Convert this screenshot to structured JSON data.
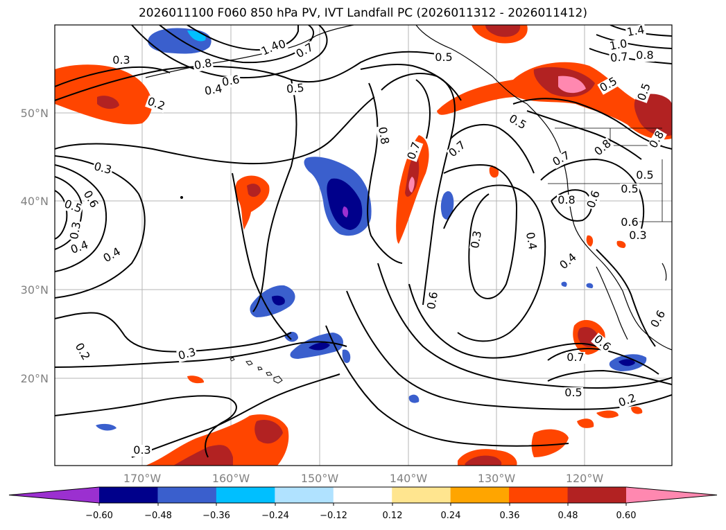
{
  "title": "2026011100 F060 850 hPa PV, IVT Landfall PC (2026011312 - 2026011412)",
  "lat_ticks": [
    "50°N",
    "40°N",
    "30°N",
    "20°N"
  ],
  "lon_ticks": [
    "170°W",
    "160°W",
    "150°W",
    "140°W",
    "130°W",
    "120°W"
  ],
  "colorbar": {
    "levels": [
      "−0.60",
      "−0.48",
      "−0.36",
      "−0.24",
      "−0.12",
      "0.12",
      "0.24",
      "0.36",
      "0.48",
      "0.60"
    ],
    "colors": [
      "#9b30d0",
      "#00008b",
      "#3a5fcd",
      "#00bfff",
      "#b0e2ff",
      "#ffffff",
      "#ffe58f",
      "#ffa500",
      "#ff4500",
      "#b22222",
      "#ff88b0"
    ]
  },
  "contour_labels": [
    "0.3",
    "0.4",
    "0.6",
    "0.8",
    "1.0",
    "1.4",
    "0.7",
    "0.5",
    "0.2",
    "0.3",
    "0.5",
    "0.6",
    "0.4",
    "0.3",
    "0.4",
    "0.8",
    "0.7",
    "0.7",
    "0.3",
    "0.6",
    "0.4",
    "0.5",
    "0.7",
    "0.8",
    "0.6",
    "0.5",
    "0.8",
    "0.6",
    "0.4",
    "0.6",
    "0.7",
    "0.5",
    "0.2",
    "0.3",
    "0.2",
    "0.3",
    "1.4",
    "1.0",
    "0.7",
    "0.8",
    "0.5",
    "0.5",
    "0.5",
    "0.8",
    "0.5",
    "0.3",
    "0.6"
  ]
}
